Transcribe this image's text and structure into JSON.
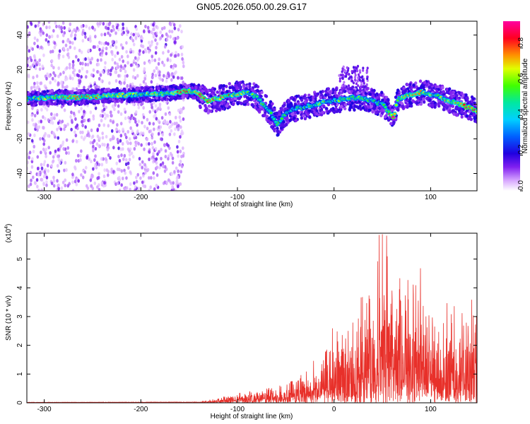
{
  "title": "GN05.2026.050.00.29.G17",
  "chart_data": [
    {
      "type": "heatmap",
      "xlabel": "Height of straight line (km)",
      "ylabel": "Frequency (Hz)",
      "xlim": [
        -318,
        148
      ],
      "ylim": [
        -50,
        48
      ],
      "xticks": [
        -300,
        -200,
        -100,
        0,
        100
      ],
      "yticks": [
        -40,
        -20,
        0,
        20,
        40
      ],
      "grid": false,
      "colorbar": {
        "label": "Normalized spectral amplitude",
        "ticks": [
          0.0,
          0.2,
          0.4,
          0.6,
          0.8
        ],
        "range": [
          0.0,
          0.95
        ],
        "colors": [
          "#ffffff",
          "#b060ff",
          "#6000d8",
          "#0000ff",
          "#00c8ff",
          "#00e890",
          "#40ff00",
          "#ffff00",
          "#ff9000",
          "#ff0000",
          "#ff00a0"
        ]
      },
      "ridge": {
        "x": [
          -318,
          -290,
          -260,
          -230,
          -200,
          -170,
          -155,
          -145,
          -130,
          -115,
          -100,
          -90,
          -80,
          -70,
          -62,
          -58,
          -52,
          -45,
          -35,
          -20,
          -5,
          10,
          25,
          40,
          50,
          58,
          62,
          66,
          75,
          90,
          105,
          120,
          135,
          148
        ],
        "y": [
          3,
          4,
          4,
          5,
          5.5,
          6.5,
          7.5,
          7.5,
          2,
          4,
          6,
          7,
          4,
          -2,
          -8,
          -12,
          -6,
          -3,
          -2,
          0,
          2,
          3,
          4,
          2,
          0,
          -5,
          -7,
          3,
          5,
          7,
          5,
          2,
          -1,
          -4
        ],
        "amplitude": [
          0.6,
          0.7,
          0.75,
          0.7,
          0.6,
          0.7,
          0.8,
          0.75,
          0.9,
          0.8,
          0.7,
          0.6,
          0.6,
          0.55,
          0.5,
          0.6,
          0.5,
          0.5,
          0.5,
          0.6,
          0.55,
          0.6,
          0.6,
          0.5,
          0.5,
          0.8,
          0.9,
          0.6,
          0.7,
          0.7,
          0.6,
          0.7,
          0.85,
          0.9
        ]
      }
    },
    {
      "type": "line",
      "xlabel": "Height of straight line (km)",
      "ylabel": "SNR (10 * v/v)",
      "y_multiplier": "(x10",
      "y_multiplier_exp": "4",
      "y_multiplier_close": ")",
      "xlim": [
        -318,
        148
      ],
      "ylim": [
        0,
        5.9
      ],
      "xticks": [
        -300,
        -200,
        -100,
        0,
        100
      ],
      "yticks": [
        0,
        1,
        2,
        3,
        4,
        5
      ],
      "grid": false,
      "color": "#e8302a",
      "envelope": {
        "x": [
          -318,
          -140,
          -120,
          -110,
          -100,
          -90,
          -80,
          -70,
          -60,
          -50,
          -40,
          -30,
          -20,
          -10,
          0,
          10,
          20,
          30,
          40,
          45,
          50,
          55,
          60,
          70,
          80,
          90,
          100,
          110,
          120,
          130,
          140,
          148
        ],
        "y": [
          0.02,
          0.03,
          0.15,
          0.25,
          0.3,
          0.4,
          0.5,
          0.55,
          0.55,
          0.6,
          0.9,
          1.0,
          1.4,
          1.6,
          2.4,
          2.8,
          3.3,
          3.6,
          4.6,
          5.2,
          5.9,
          5.1,
          5.6,
          4.8,
          4.1,
          4.1,
          3.8,
          3.3,
          3.2,
          3.1,
          3.9,
          4.6
        ]
      }
    }
  ]
}
